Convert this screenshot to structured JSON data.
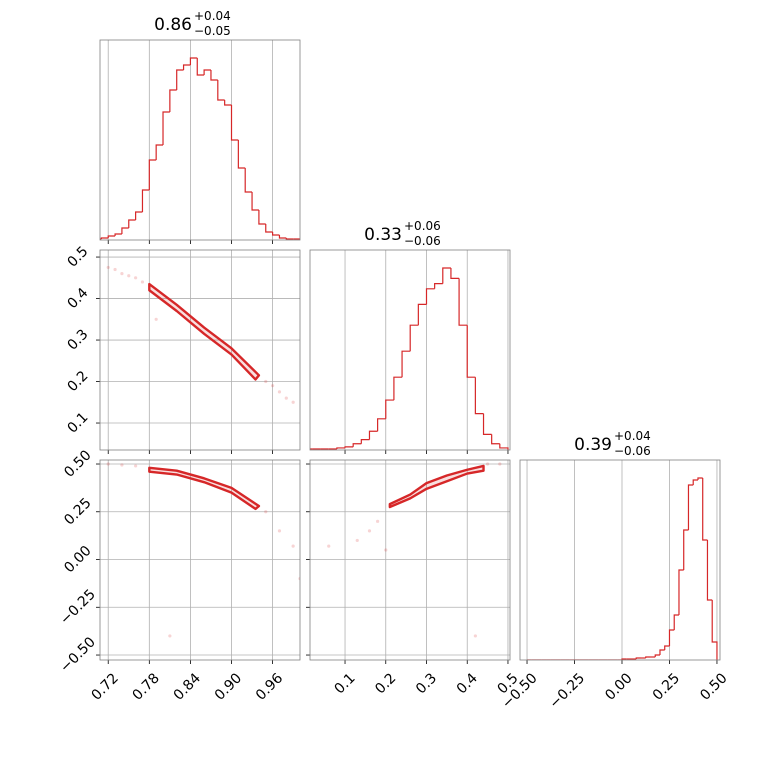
{
  "chart_data": [
    {
      "type": "histogram",
      "title": "0.86",
      "title_upper": "+0.04",
      "title_lower": "−0.05",
      "color": "#d62728",
      "bins": [
        0.7,
        0.71,
        0.72,
        0.73,
        0.74,
        0.75,
        0.76,
        0.77,
        0.78,
        0.79,
        0.8,
        0.81,
        0.82,
        0.83,
        0.84,
        0.85,
        0.86,
        0.87,
        0.88,
        0.89,
        0.9,
        0.91,
        0.92,
        0.93,
        0.94,
        0.95,
        0.96,
        0.97,
        0.98,
        0.99,
        1.0
      ],
      "counts": [
        1,
        2,
        4,
        6,
        12,
        20,
        28,
        50,
        80,
        95,
        128,
        150,
        170,
        175,
        182,
        165,
        170,
        160,
        140,
        135,
        100,
        72,
        48,
        30,
        16,
        8,
        5,
        2,
        1,
        1
      ],
      "xlim": [
        0.708,
        1.0
      ],
      "xticks": [
        0.72,
        0.78,
        0.84,
        0.9,
        0.96
      ],
      "grid": true
    },
    {
      "type": "scatter",
      "color": "#d62728",
      "x": [
        0.72,
        0.73,
        0.74,
        0.75,
        0.76,
        0.77,
        0.95,
        0.96,
        0.97,
        0.98,
        0.99,
        0.79
      ],
      "y": [
        0.475,
        0.47,
        0.46,
        0.455,
        0.45,
        0.44,
        0.2,
        0.19,
        0.175,
        0.16,
        0.15,
        0.35
      ],
      "contour": {
        "x": [
          0.78,
          0.82,
          0.86,
          0.9,
          0.94,
          0.935,
          0.9,
          0.86,
          0.82,
          0.78
        ],
        "y": [
          0.435,
          0.385,
          0.33,
          0.28,
          0.215,
          0.205,
          0.265,
          0.315,
          0.37,
          0.42
        ]
      },
      "xlim": [
        0.708,
        1.0
      ],
      "ylim": [
        0.035,
        0.517
      ],
      "xticks": [
        0.72,
        0.78,
        0.84,
        0.9,
        0.96
      ],
      "yticks": [
        0.1,
        0.2,
        0.3,
        0.4,
        0.5
      ],
      "grid": true
    },
    {
      "type": "histogram",
      "title": "0.33",
      "title_upper": "+0.06",
      "title_lower": "−0.06",
      "color": "#d62728",
      "bins": [
        0,
        0.02,
        0.04,
        0.06,
        0.08,
        0.1,
        0.12,
        0.14,
        0.16,
        0.18,
        0.2,
        0.22,
        0.24,
        0.26,
        0.28,
        0.3,
        0.32,
        0.34,
        0.36,
        0.38,
        0.4,
        0.42,
        0.44,
        0.46,
        0.48,
        0.5
      ],
      "counts": [
        1,
        1,
        1,
        1,
        2,
        3,
        6,
        10,
        18,
        30,
        48,
        70,
        95,
        120,
        140,
        155,
        160,
        175,
        165,
        120,
        70,
        35,
        15,
        6,
        2
      ],
      "xlim": [
        0.014,
        0.505
      ],
      "xticks": [
        0.1,
        0.2,
        0.3,
        0.4,
        0.5
      ],
      "grid": true
    },
    {
      "type": "scatter",
      "color": "#d62728",
      "x": [
        0.72,
        0.74,
        0.76,
        0.95,
        0.97,
        0.99,
        1.0,
        0.81
      ],
      "y": [
        0.5,
        0.495,
        0.49,
        0.25,
        0.15,
        0.07,
        -0.1,
        -0.4
      ],
      "contour": {
        "x": [
          0.78,
          0.82,
          0.86,
          0.9,
          0.94,
          0.935,
          0.9,
          0.86,
          0.82,
          0.78
        ],
        "y": [
          0.48,
          0.465,
          0.425,
          0.375,
          0.28,
          0.265,
          0.35,
          0.405,
          0.445,
          0.46
        ]
      },
      "xlim": [
        0.708,
        1.0
      ],
      "ylim": [
        -0.526,
        0.521
      ],
      "xticks": [
        0.72,
        0.78,
        0.84,
        {
          "value": 0.9,
          "label": "0.90"
        },
        0.96
      ],
      "yticks": [
        {
          "value": -0.5,
          "label": "−0.50"
        },
        {
          "value": -0.25,
          "label": "−0.25"
        },
        {
          "value": 0,
          "label": "0.00"
        },
        0.25,
        {
          "value": 0.5,
          "label": "0.50"
        }
      ],
      "grid": true
    },
    {
      "type": "scatter",
      "color": "#d62728",
      "x": [
        0.18,
        0.16,
        0.13,
        0.2,
        0.06,
        0.45,
        0.48,
        0.42
      ],
      "y": [
        0.2,
        0.15,
        0.1,
        0.05,
        0.07,
        0.5,
        0.5,
        -0.4
      ],
      "contour": {
        "x": [
          0.21,
          0.26,
          0.3,
          0.35,
          0.4,
          0.44,
          0.44,
          0.4,
          0.35,
          0.3,
          0.26,
          0.21
        ],
        "y": [
          0.29,
          0.34,
          0.4,
          0.44,
          0.47,
          0.49,
          0.465,
          0.45,
          0.41,
          0.37,
          0.32,
          0.275
        ]
      },
      "xlim": [
        0.014,
        0.505
      ],
      "ylim": [
        -0.526,
        0.521
      ],
      "xticks": [
        0.1,
        0.2,
        0.3,
        0.4,
        0.5
      ],
      "yticks": [
        -0.5,
        -0.25,
        0,
        0.25,
        0.5
      ],
      "grid": true
    },
    {
      "type": "histogram",
      "title": "0.39",
      "title_upper": "+0.04",
      "title_lower": "−0.06",
      "color": "#d62728",
      "bins": [
        -0.5,
        -0.475,
        -0.45,
        -0.425,
        -0.4,
        -0.375,
        -0.35,
        -0.325,
        -0.3,
        -0.275,
        -0.25,
        -0.225,
        -0.2,
        -0.175,
        -0.15,
        -0.125,
        -0.1,
        -0.075,
        -0.05,
        -0.025,
        0,
        0.025,
        0.05,
        0.075,
        0.1,
        0.125,
        0.15,
        0.175,
        0.2,
        0.225,
        0.25,
        0.275,
        0.3,
        0.325,
        0.35,
        0.375,
        0.4,
        0.425,
        0.45,
        0.475,
        0.5
      ],
      "counts": [
        0,
        0,
        0,
        0,
        0,
        0,
        0,
        0,
        0,
        0,
        0,
        0,
        0,
        0,
        0,
        0,
        0,
        0,
        0,
        0,
        1,
        1,
        1,
        2,
        2,
        3,
        3,
        5,
        10,
        14,
        30,
        45,
        90,
        130,
        175,
        180,
        182,
        120,
        60,
        18
      ],
      "xlim": [
        -0.537,
        0.516
      ],
      "xticks": [
        {
          "value": -0.5,
          "label": "−0.50"
        },
        {
          "value": -0.25,
          "label": "−0.25"
        },
        {
          "value": 0,
          "label": "0.00"
        },
        0.25,
        {
          "value": 0.5,
          "label": "0.50"
        }
      ],
      "grid": true
    }
  ]
}
